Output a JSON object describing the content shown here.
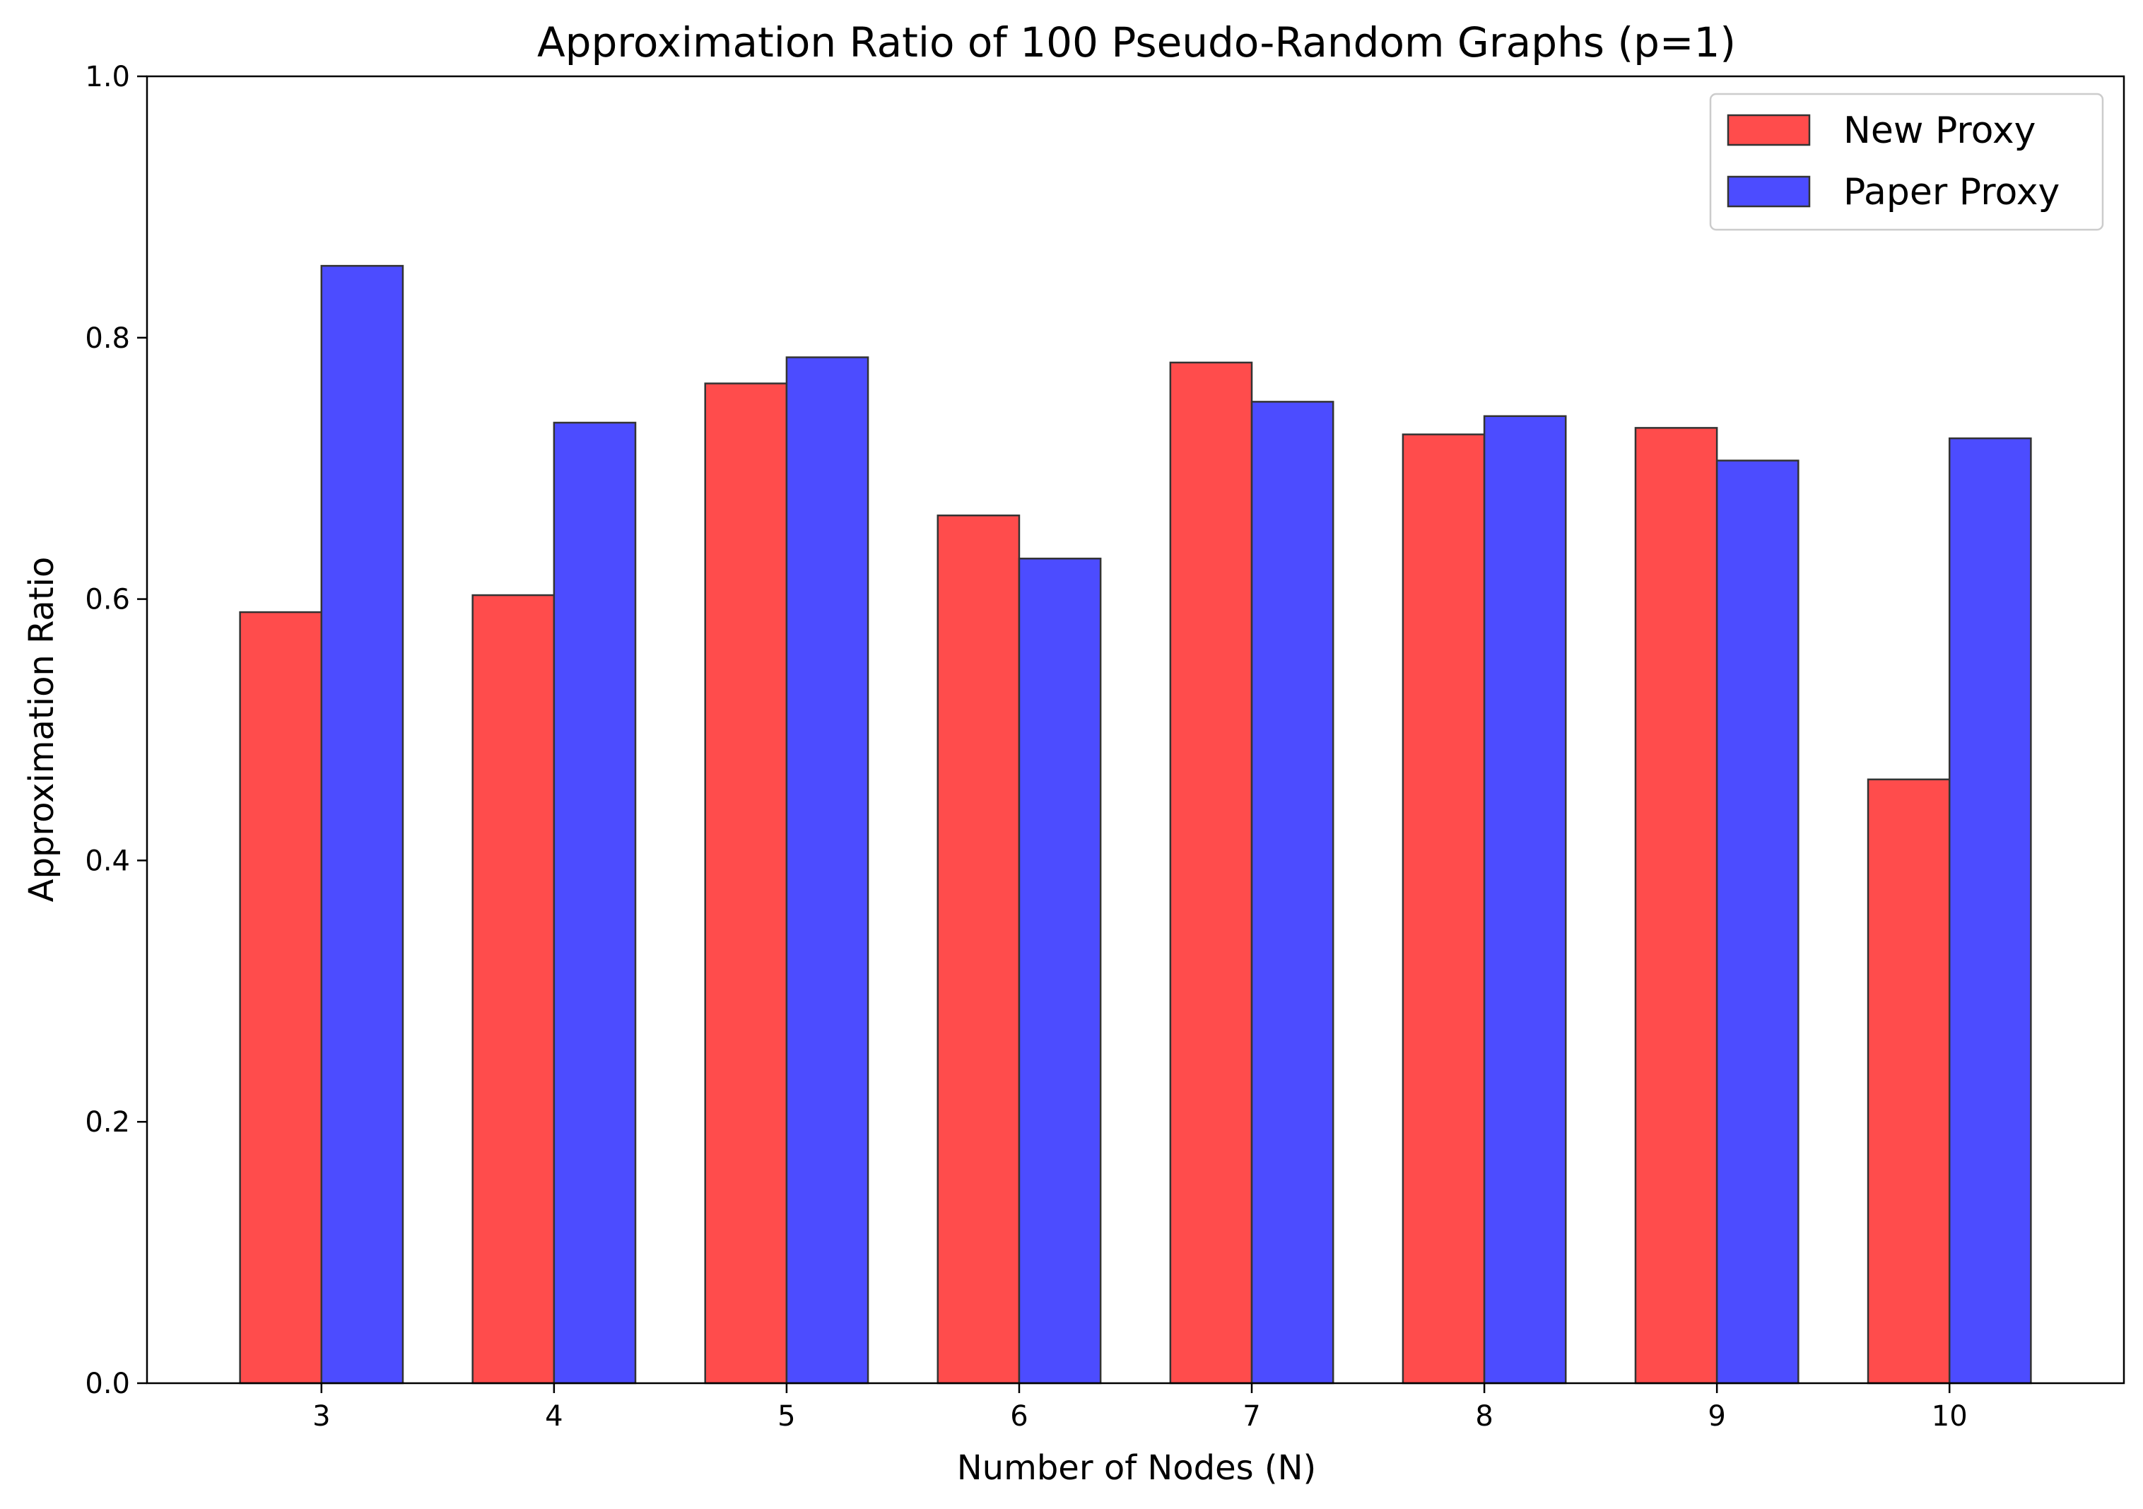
{
  "chart_data": {
    "type": "bar",
    "title": "Approximation Ratio of 100 Pseudo-Random Graphs (p=1)",
    "xlabel": "Number of Nodes (N)",
    "ylabel": "Approximation Ratio",
    "categories": [
      "3",
      "4",
      "5",
      "6",
      "7",
      "8",
      "9",
      "10"
    ],
    "ylim": [
      0,
      1.0
    ],
    "yticks": [
      0.0,
      0.2,
      0.4,
      0.6,
      0.8,
      1.0
    ],
    "ytick_labels": [
      "0.0",
      "0.2",
      "0.4",
      "0.6",
      "0.8",
      "1.0"
    ],
    "grid": false,
    "legend_position": "top-right",
    "series": [
      {
        "name": "New Proxy",
        "color": "#ff4c4c",
        "values": [
          0.59,
          0.603,
          0.765,
          0.664,
          0.781,
          0.726,
          0.731,
          0.462
        ]
      },
      {
        "name": "Paper Proxy",
        "color": "#4c4cff",
        "values": [
          0.855,
          0.735,
          0.785,
          0.631,
          0.751,
          0.74,
          0.706,
          0.723
        ]
      }
    ]
  }
}
